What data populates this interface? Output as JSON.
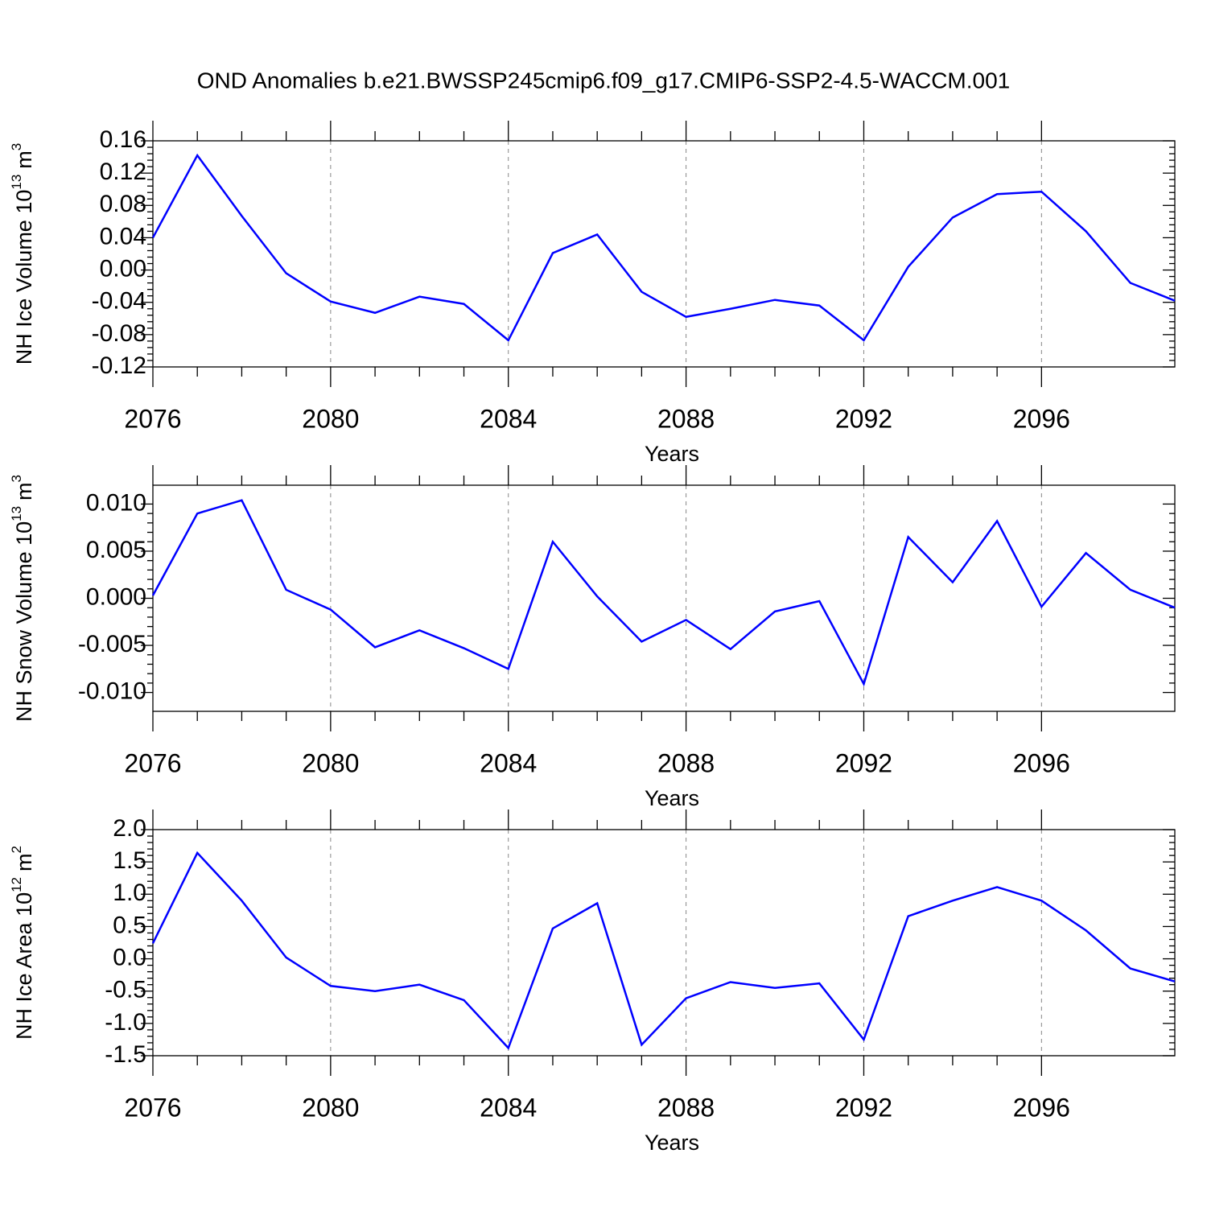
{
  "title": "OND Anomalies b.e21.BWSSP245cmip6.f09_g17.CMIP6-SSP2-4.5-WACCM.001",
  "chart_data": [
    {
      "type": "line",
      "ylabel": [
        "NH Ice Volume 10",
        "13",
        "m",
        "3"
      ],
      "xlabel": "Years",
      "x": [
        2076,
        2077,
        2078,
        2079,
        2080,
        2081,
        2082,
        2083,
        2084,
        2085,
        2086,
        2087,
        2088,
        2089,
        2090,
        2091,
        2092,
        2093,
        2094,
        2095,
        2096,
        2097,
        2098,
        2099
      ],
      "series": [
        {
          "color": "#0000ff",
          "values": [
            0.04,
            0.142,
            0.067,
            -0.004,
            -0.039,
            -0.053,
            -0.033,
            -0.042,
            -0.087,
            0.021,
            0.044,
            -0.027,
            -0.058,
            -0.048,
            -0.037,
            -0.044,
            -0.087,
            0.004,
            0.065,
            0.094,
            0.097,
            0.048,
            -0.016,
            -0.038
          ]
        }
      ],
      "xlim": [
        2076,
        2099
      ],
      "xticks": [
        2076,
        2080,
        2084,
        2088,
        2092,
        2096
      ],
      "ylim": [
        -0.12,
        0.16
      ],
      "yticks": [
        {
          "value": 0.16,
          "label": "0.16"
        },
        {
          "value": 0.12,
          "label": "0.12"
        },
        {
          "value": 0.08,
          "label": "0.08"
        },
        {
          "value": 0.04,
          "label": "0.04"
        },
        {
          "value": 0,
          "label": "0.00"
        },
        {
          "value": -0.04,
          "label": "-0.04"
        },
        {
          "value": -0.08,
          "label": "-0.08"
        },
        {
          "value": -0.12,
          "label": "-0.12"
        }
      ],
      "grid": true
    },
    {
      "type": "line",
      "ylabel": [
        "NH Snow Volume 10",
        "13",
        "m",
        "3"
      ],
      "xlabel": "Years",
      "x": [
        2076,
        2077,
        2078,
        2079,
        2080,
        2081,
        2082,
        2083,
        2084,
        2085,
        2086,
        2087,
        2088,
        2089,
        2090,
        2091,
        2092,
        2093,
        2094,
        2095,
        2096,
        2097,
        2098,
        2099
      ],
      "series": [
        {
          "color": "#0000ff",
          "values": [
            0.0003,
            0.009,
            0.0104,
            0.0009,
            -0.0012,
            -0.0052,
            -0.0034,
            -0.0053,
            -0.0075,
            0.006,
            0.0002,
            -0.0046,
            -0.0023,
            -0.0054,
            -0.0014,
            -0.0003,
            -0.0091,
            0.0065,
            0.0017,
            0.0082,
            -0.0009,
            0.0048,
            0.0009,
            -0.001
          ]
        }
      ],
      "xlim": [
        2076,
        2099
      ],
      "xticks": [
        2076,
        2080,
        2084,
        2088,
        2092,
        2096
      ],
      "ylim": [
        -0.012,
        0.012
      ],
      "yticks": [
        {
          "value": 0.01,
          "label": "0.010"
        },
        {
          "value": 0.005,
          "label": "0.005"
        },
        {
          "value": 0,
          "label": "0.000"
        },
        {
          "value": -0.005,
          "label": "-0.005"
        },
        {
          "value": -0.01,
          "label": "-0.010"
        }
      ],
      "grid": true
    },
    {
      "type": "line",
      "ylabel": [
        "NH Ice Area 10",
        "12",
        "m",
        "2"
      ],
      "xlabel": "Years",
      "x": [
        2076,
        2077,
        2078,
        2079,
        2080,
        2081,
        2082,
        2083,
        2084,
        2085,
        2086,
        2087,
        2088,
        2089,
        2090,
        2091,
        2092,
        2093,
        2094,
        2095,
        2096,
        2097,
        2098,
        2099
      ],
      "series": [
        {
          "color": "#0000ff",
          "values": [
            0.24,
            1.64,
            0.9,
            0.02,
            -0.42,
            -0.5,
            -0.4,
            -0.64,
            -1.38,
            0.47,
            0.86,
            -1.33,
            -0.61,
            -0.36,
            -0.45,
            -0.38,
            -1.25,
            0.66,
            0.9,
            1.11,
            0.9,
            0.44,
            -0.15,
            -0.35
          ]
        }
      ],
      "xlim": [
        2076,
        2099
      ],
      "xticks": [
        2076,
        2080,
        2084,
        2088,
        2092,
        2096
      ],
      "ylim": [
        -1.5,
        2.0
      ],
      "yticks": [
        {
          "value": 2.0,
          "label": "2.0"
        },
        {
          "value": 1.5,
          "label": "1.5"
        },
        {
          "value": 1.0,
          "label": "1.0"
        },
        {
          "value": 0.5,
          "label": "0.5"
        },
        {
          "value": 0,
          "label": "0.0"
        },
        {
          "value": -0.5,
          "label": "-0.5"
        },
        {
          "value": -1.0,
          "label": "-1.0"
        },
        {
          "value": -1.5,
          "label": "-1.5"
        }
      ],
      "grid": true
    }
  ]
}
